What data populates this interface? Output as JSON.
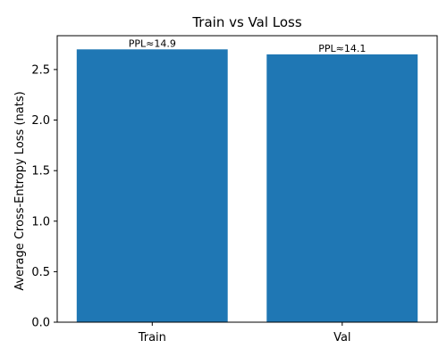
{
  "chart_data": {
    "type": "bar",
    "title": "Train vs Val Loss",
    "xlabel": "",
    "ylabel": "Average Cross-Entropy Loss (nats)",
    "categories": [
      "Train",
      "Val"
    ],
    "values": [
      2.7,
      2.65
    ],
    "bar_labels": [
      "PPL≈14.9",
      "PPL≈14.1"
    ],
    "ylim": [
      0,
      2.835
    ],
    "yticks": [
      0.0,
      0.5,
      1.0,
      1.5,
      2.0,
      2.5
    ],
    "ytick_labels": [
      "0.0",
      "0.5",
      "1.0",
      "1.5",
      "2.0",
      "2.5"
    ],
    "grid": false,
    "colors": {
      "bar": "#1f77b4",
      "axis": "#000000"
    }
  }
}
